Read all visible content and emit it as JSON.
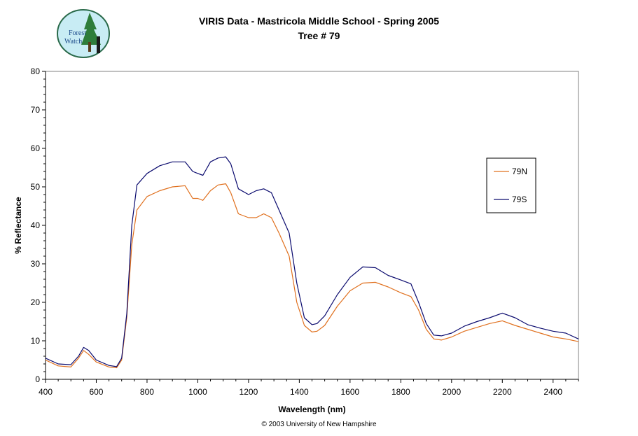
{
  "title": "VIRIS Data - Mastricola Middle School - Spring 2005",
  "subtitle": "Tree # 79",
  "footer": "© 2003 University of New Hampshire",
  "logo_text": [
    "Forest",
    "Watch"
  ],
  "colors": {
    "79N": "#e0701e",
    "79S": "#0a0a6e"
  },
  "chart_data": {
    "type": "line",
    "title": "VIRIS Data - Mastricola Middle School - Spring 2005",
    "subtitle": "Tree # 79",
    "xlabel": "Wavelength (nm)",
    "ylabel": "% Reflectance",
    "xlim": [
      400,
      2500
    ],
    "ylim": [
      0,
      80
    ],
    "x_ticks": [
      400,
      600,
      800,
      1000,
      1200,
      1400,
      1600,
      1800,
      2000,
      2200,
      2400
    ],
    "y_ticks": [
      0,
      10,
      20,
      30,
      40,
      50,
      60,
      70,
      80
    ],
    "legend_position": "right",
    "grid": false,
    "series": [
      {
        "name": "79N",
        "color": "#e0701e",
        "points": [
          [
            400,
            5
          ],
          [
            450,
            3.5
          ],
          [
            500,
            3.2
          ],
          [
            530,
            5.5
          ],
          [
            550,
            7.5
          ],
          [
            570,
            6.5
          ],
          [
            600,
            4.5
          ],
          [
            650,
            3.2
          ],
          [
            680,
            3
          ],
          [
            700,
            5
          ],
          [
            720,
            16
          ],
          [
            740,
            35
          ],
          [
            760,
            44
          ],
          [
            800,
            47.5
          ],
          [
            850,
            49
          ],
          [
            900,
            50
          ],
          [
            950,
            50.3
          ],
          [
            980,
            47
          ],
          [
            1000,
            47
          ],
          [
            1020,
            46.5
          ],
          [
            1050,
            49
          ],
          [
            1080,
            50.5
          ],
          [
            1110,
            50.8
          ],
          [
            1130,
            48.5
          ],
          [
            1160,
            43
          ],
          [
            1200,
            42
          ],
          [
            1230,
            42
          ],
          [
            1260,
            43
          ],
          [
            1290,
            42
          ],
          [
            1320,
            38
          ],
          [
            1360,
            32
          ],
          [
            1390,
            20
          ],
          [
            1420,
            14
          ],
          [
            1450,
            12.3
          ],
          [
            1470,
            12.5
          ],
          [
            1500,
            14
          ],
          [
            1550,
            19
          ],
          [
            1600,
            23
          ],
          [
            1650,
            25
          ],
          [
            1700,
            25.2
          ],
          [
            1750,
            24
          ],
          [
            1800,
            22.5
          ],
          [
            1840,
            21.5
          ],
          [
            1870,
            18
          ],
          [
            1900,
            13
          ],
          [
            1930,
            10.5
          ],
          [
            1960,
            10.2
          ],
          [
            2000,
            11
          ],
          [
            2050,
            12.5
          ],
          [
            2100,
            13.5
          ],
          [
            2150,
            14.5
          ],
          [
            2200,
            15.2
          ],
          [
            2250,
            14
          ],
          [
            2300,
            13
          ],
          [
            2350,
            12
          ],
          [
            2400,
            11
          ],
          [
            2450,
            10.5
          ],
          [
            2500,
            9.8
          ]
        ]
      },
      {
        "name": "79S",
        "color": "#0a0a6e",
        "points": [
          [
            400,
            5.5
          ],
          [
            450,
            4
          ],
          [
            500,
            3.8
          ],
          [
            530,
            6
          ],
          [
            550,
            8.3
          ],
          [
            570,
            7.5
          ],
          [
            600,
            5
          ],
          [
            650,
            3.6
          ],
          [
            680,
            3.3
          ],
          [
            700,
            5.5
          ],
          [
            720,
            17
          ],
          [
            740,
            40
          ],
          [
            760,
            50.5
          ],
          [
            800,
            53.5
          ],
          [
            850,
            55.5
          ],
          [
            900,
            56.5
          ],
          [
            950,
            56.5
          ],
          [
            980,
            54
          ],
          [
            1000,
            53.5
          ],
          [
            1020,
            53
          ],
          [
            1050,
            56.5
          ],
          [
            1080,
            57.5
          ],
          [
            1110,
            57.8
          ],
          [
            1130,
            56
          ],
          [
            1160,
            49.5
          ],
          [
            1200,
            48
          ],
          [
            1230,
            49
          ],
          [
            1260,
            49.5
          ],
          [
            1290,
            48.5
          ],
          [
            1320,
            44
          ],
          [
            1360,
            38
          ],
          [
            1390,
            25
          ],
          [
            1420,
            16
          ],
          [
            1450,
            14.2
          ],
          [
            1470,
            14.5
          ],
          [
            1500,
            16.5
          ],
          [
            1550,
            22
          ],
          [
            1600,
            26.5
          ],
          [
            1650,
            29.2
          ],
          [
            1700,
            29
          ],
          [
            1750,
            27
          ],
          [
            1800,
            25.8
          ],
          [
            1840,
            24.8
          ],
          [
            1870,
            20
          ],
          [
            1900,
            14.5
          ],
          [
            1930,
            11.5
          ],
          [
            1960,
            11.3
          ],
          [
            2000,
            12
          ],
          [
            2050,
            13.8
          ],
          [
            2100,
            15
          ],
          [
            2150,
            16
          ],
          [
            2200,
            17.2
          ],
          [
            2250,
            16
          ],
          [
            2300,
            14.2
          ],
          [
            2350,
            13.3
          ],
          [
            2400,
            12.5
          ],
          [
            2450,
            12
          ],
          [
            2500,
            10.5
          ]
        ]
      }
    ]
  }
}
